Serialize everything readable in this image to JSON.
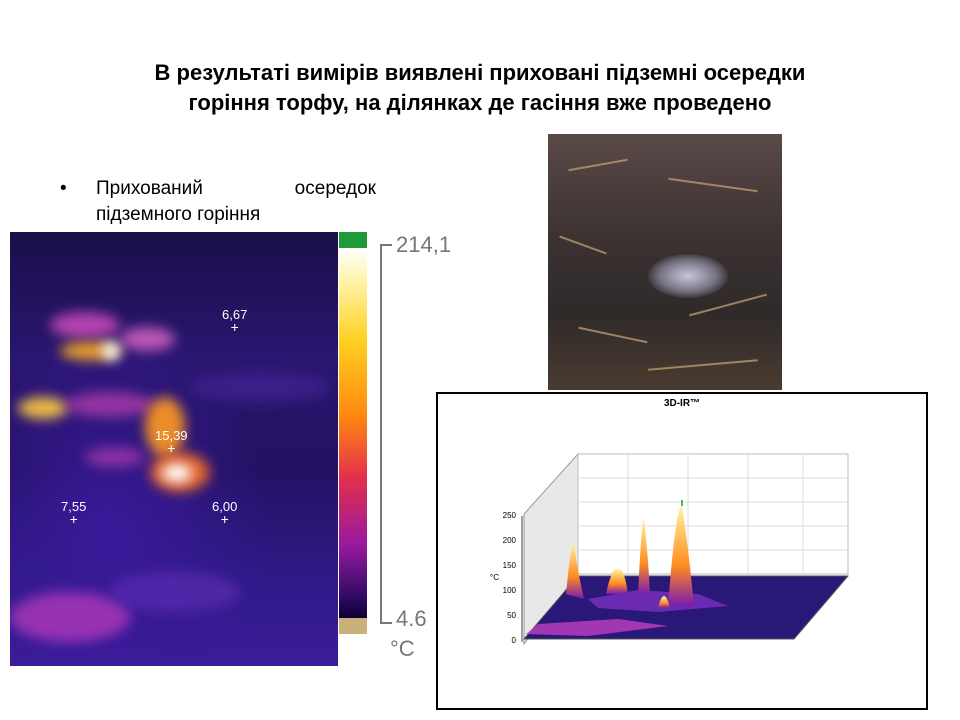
{
  "slide": {
    "title_line1": "В результаті вимірів виявлені приховані підземні осередки",
    "title_line2": "горіння торфу, на ділянках де гасіння вже проведено",
    "bullet_text": "Прихований осередок підземного горіння"
  },
  "thermal": {
    "scale_max": "214,1",
    "scale_min": "4.6",
    "unit": "°C",
    "readings": [
      "6,67",
      "15,39",
      "7,55",
      "6,00"
    ]
  },
  "chart3d": {
    "title": "3D-IR™",
    "axis_unit": "°C",
    "ticks": [
      "250",
      "200",
      "150",
      "100",
      "50",
      "0"
    ]
  },
  "chart_data": {
    "type": "other",
    "title": "3D-IR™",
    "ylabel": "°C",
    "ylim": [
      0,
      250
    ],
    "yticks": [
      0,
      50,
      100,
      150,
      200,
      250
    ]
  },
  "colors": {
    "scale_top": "#1f9a3a",
    "scale_bottom": "#c8b078",
    "thermal_bg": "#2a1670"
  }
}
